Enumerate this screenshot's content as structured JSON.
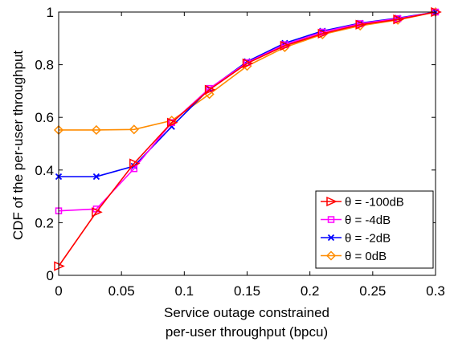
{
  "chart_data": {
    "type": "line",
    "xlabel_lines": [
      "Service outage constrained",
      "per-user throughput (bpcu)"
    ],
    "ylabel": "CDF of the per-user throughput",
    "xlim": [
      0,
      0.3
    ],
    "ylim": [
      0,
      1
    ],
    "xticks": [
      0,
      0.05,
      0.1,
      0.15,
      0.2,
      0.25,
      0.3
    ],
    "xtick_labels": [
      "0",
      "0.05",
      "0.1",
      "0.15",
      "0.2",
      "0.25",
      "0.3"
    ],
    "yticks": [
      0,
      0.2,
      0.4,
      0.6,
      0.8,
      1
    ],
    "ytick_labels": [
      "0",
      "0.2",
      "0.4",
      "0.6",
      "0.8",
      "1"
    ],
    "grid": false,
    "legend_position": "bottom-right",
    "x": [
      0,
      0.03,
      0.06,
      0.09,
      0.12,
      0.15,
      0.18,
      0.21,
      0.24,
      0.27,
      0.3
    ],
    "series": [
      {
        "name": "-100dB",
        "color": "#ff0000",
        "marker": "triangle-right",
        "values": [
          0.035,
          0.24,
          0.425,
          0.58,
          0.705,
          0.805,
          0.872,
          0.918,
          0.952,
          0.972,
          1.0
        ]
      },
      {
        "name": "-4dB",
        "color": "#ff00ff",
        "marker": "square",
        "values": [
          0.245,
          0.252,
          0.405,
          0.58,
          0.71,
          0.808,
          0.876,
          0.924,
          0.956,
          0.975,
          1.0
        ]
      },
      {
        "name": "-2dB",
        "color": "#0000ff",
        "marker": "x",
        "values": [
          0.375,
          0.375,
          0.415,
          0.565,
          0.708,
          0.812,
          0.882,
          0.928,
          0.958,
          0.977,
          1.0
        ]
      },
      {
        "name": "0dB",
        "color": "#ff8c00",
        "marker": "diamond",
        "values": [
          0.552,
          0.552,
          0.554,
          0.588,
          0.688,
          0.795,
          0.866,
          0.915,
          0.948,
          0.97,
          1.0
        ]
      }
    ],
    "legend_prefix": "θ = "
  }
}
